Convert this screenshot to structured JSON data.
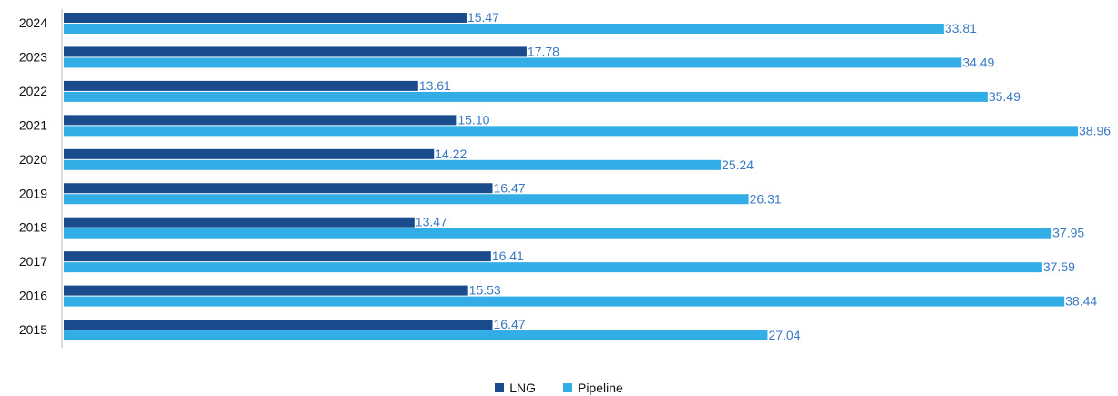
{
  "chart_data": {
    "type": "bar",
    "orientation": "horizontal",
    "categories": [
      "2024",
      "2023",
      "2022",
      "2021",
      "2020",
      "2019",
      "2018",
      "2017",
      "2016",
      "2015"
    ],
    "series": [
      {
        "name": "LNG",
        "color": "#1a4b8c",
        "values": [
          15.47,
          17.78,
          13.61,
          15.1,
          14.22,
          16.47,
          13.47,
          16.41,
          15.53,
          16.47
        ],
        "labels": [
          "15.47",
          "17.78",
          "13.61",
          "15.10",
          "14.22",
          "16.47",
          "13.47",
          "16.41",
          "15.53",
          "16.47"
        ]
      },
      {
        "name": "Pipeline",
        "color": "#33ade6",
        "values": [
          33.81,
          34.49,
          35.49,
          38.96,
          25.24,
          26.31,
          37.95,
          37.59,
          38.44,
          27.04
        ],
        "labels": [
          "33.81",
          "34.49",
          "35.49",
          "38.96",
          "25.24",
          "26.31",
          "37.95",
          "37.59",
          "38.44",
          "27.04"
        ]
      }
    ],
    "xlim": [
      0,
      38.96
    ],
    "legend_position": "bottom-center",
    "grid": false,
    "data_label_color": "#3b78c4"
  }
}
